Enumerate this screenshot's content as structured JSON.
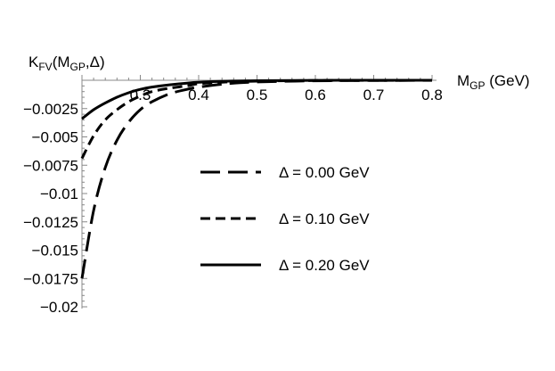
{
  "chart_data": {
    "type": "line",
    "x_axis": {
      "label_main": "M",
      "label_sub": "GP",
      "label_unit": " (GeV)",
      "range": [
        0.2,
        0.8
      ],
      "ticks": [
        0.3,
        0.4,
        0.5,
        0.6,
        0.7,
        0.8
      ],
      "tick_labels": [
        "0.3",
        "0.4",
        "0.5",
        "0.6",
        "0.7",
        "0.8"
      ]
    },
    "y_axis": {
      "label_main": "K",
      "label_sub1": "FV",
      "label_mid": "(M",
      "label_sub2": "GP",
      "label_end": ",Δ)",
      "range": [
        -0.02,
        0
      ],
      "ticks": [
        -0.0025,
        -0.005,
        -0.0075,
        -0.01,
        -0.0125,
        -0.015,
        -0.0175,
        -0.02
      ],
      "tick_labels": [
        "−0.0025",
        "−0.005",
        "−0.0075",
        "−0.01",
        "−0.0125",
        "−0.015",
        "−0.0175",
        "−0.02"
      ]
    },
    "series": [
      {
        "name": "Δ = 0.00 GeV",
        "dash": "long-dash",
        "x": [
          0.2,
          0.22,
          0.24,
          0.26,
          0.28,
          0.3,
          0.32,
          0.35,
          0.38,
          0.4,
          0.45,
          0.5,
          0.6,
          0.7,
          0.8
        ],
        "y": [
          -0.0175,
          -0.0115,
          -0.0077,
          -0.0053,
          -0.0037,
          -0.0026,
          -0.0019,
          -0.0012,
          -0.0008,
          -0.0006,
          -0.0003,
          -0.00015,
          -5e-05,
          -2e-05,
          -1e-05
        ]
      },
      {
        "name": "Δ = 0.10 GeV",
        "dash": "short-dash",
        "x": [
          0.2,
          0.22,
          0.24,
          0.26,
          0.28,
          0.3,
          0.32,
          0.35,
          0.38,
          0.4,
          0.45,
          0.5,
          0.6,
          0.7,
          0.8
        ],
        "y": [
          -0.0069,
          -0.0049,
          -0.0035,
          -0.0026,
          -0.0019,
          -0.0014,
          -0.001,
          -0.0007,
          -0.0005,
          -0.0003,
          -0.00015,
          -8e-05,
          -2e-05,
          -1e-05,
          0
        ]
      },
      {
        "name": "Δ = 0.20 GeV",
        "dash": "solid",
        "x": [
          0.2,
          0.22,
          0.24,
          0.26,
          0.28,
          0.3,
          0.32,
          0.35,
          0.38,
          0.4,
          0.45,
          0.5,
          0.6,
          0.7,
          0.8
        ],
        "y": [
          -0.0034,
          -0.0026,
          -0.002,
          -0.0015,
          -0.0011,
          -0.0008,
          -0.0006,
          -0.0004,
          -0.00025,
          -0.00018,
          -8e-05,
          -4e-05,
          -1e-05,
          0,
          0
        ]
      }
    ],
    "legend_position": "center-right",
    "grid": false
  }
}
